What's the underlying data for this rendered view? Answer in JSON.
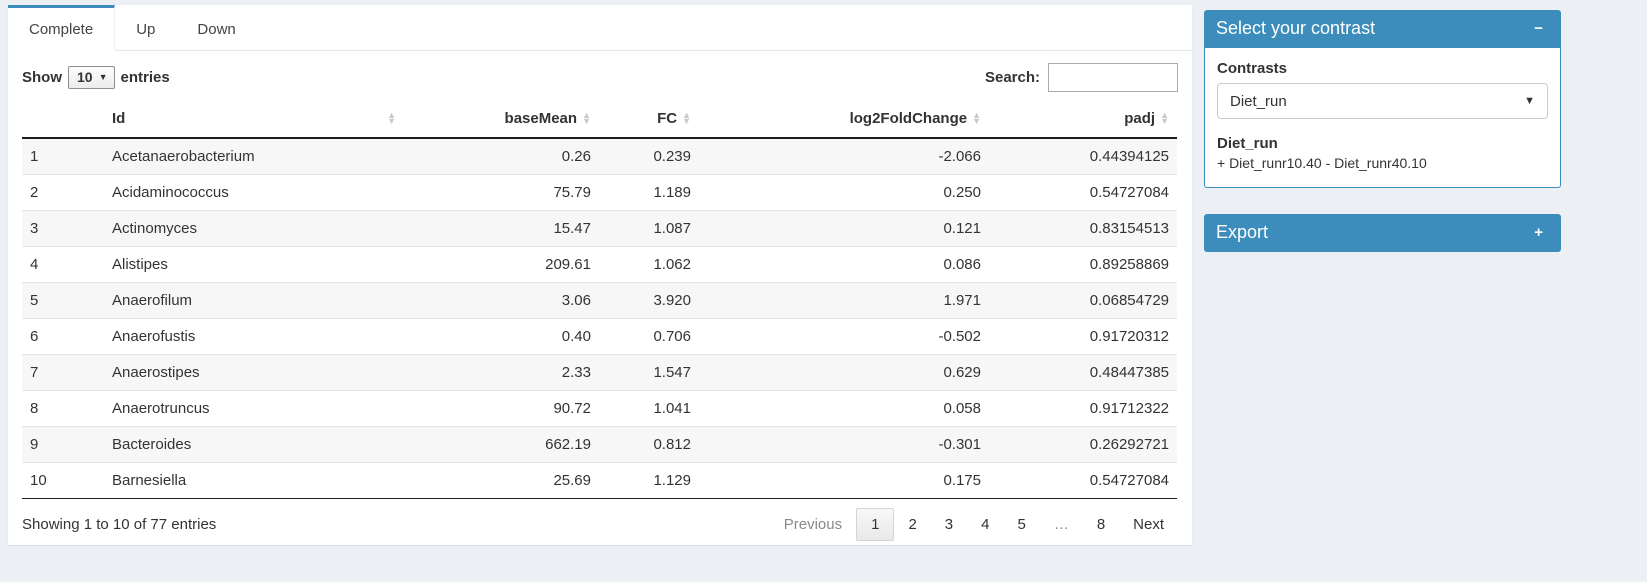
{
  "tabs": [
    {
      "label": "Complete",
      "active": true
    },
    {
      "label": "Up",
      "active": false
    },
    {
      "label": "Down",
      "active": false
    }
  ],
  "controls": {
    "show_label_before": "Show",
    "show_value": "10",
    "show_label_after": "entries",
    "search_label": "Search:",
    "search_value": ""
  },
  "table": {
    "columns": [
      {
        "label": "",
        "sortable": false,
        "align": "left",
        "key": "rownum"
      },
      {
        "label": "Id",
        "sortable": true,
        "align": "left",
        "key": "id"
      },
      {
        "label": "baseMean",
        "sortable": true,
        "align": "right",
        "key": "baseMean"
      },
      {
        "label": "FC",
        "sortable": true,
        "align": "right",
        "key": "fc"
      },
      {
        "label": "log2FoldChange",
        "sortable": true,
        "align": "right",
        "key": "log2FoldChange"
      },
      {
        "label": "padj",
        "sortable": true,
        "align": "right",
        "key": "padj"
      }
    ],
    "rows": [
      [
        "1",
        "Acetanaerobacterium",
        "0.26",
        "0.239",
        "-2.066",
        "0.44394125"
      ],
      [
        "2",
        "Acidaminococcus",
        "75.79",
        "1.189",
        "0.250",
        "0.54727084"
      ],
      [
        "3",
        "Actinomyces",
        "15.47",
        "1.087",
        "0.121",
        "0.83154513"
      ],
      [
        "4",
        "Alistipes",
        "209.61",
        "1.062",
        "0.086",
        "0.89258869"
      ],
      [
        "5",
        "Anaerofilum",
        "3.06",
        "3.920",
        "1.971",
        "0.06854729"
      ],
      [
        "6",
        "Anaerofustis",
        "0.40",
        "0.706",
        "-0.502",
        "0.91720312"
      ],
      [
        "7",
        "Anaerostipes",
        "2.33",
        "1.547",
        "0.629",
        "0.48447385"
      ],
      [
        "8",
        "Anaerotruncus",
        "90.72",
        "1.041",
        "0.058",
        "0.91712322"
      ],
      [
        "9",
        "Bacteroides",
        "662.19",
        "0.812",
        "-0.301",
        "0.26292721"
      ],
      [
        "10",
        "Barnesiella",
        "25.69",
        "1.129",
        "0.175",
        "0.54727084"
      ]
    ]
  },
  "footer": {
    "info": "Showing 1 to 10 of 77 entries",
    "pagination": [
      {
        "label": "Previous",
        "state": "disabled"
      },
      {
        "label": "1",
        "state": "active"
      },
      {
        "label": "2",
        "state": "normal"
      },
      {
        "label": "3",
        "state": "normal"
      },
      {
        "label": "4",
        "state": "normal"
      },
      {
        "label": "5",
        "state": "normal"
      },
      {
        "label": "…",
        "state": "ellipsis"
      },
      {
        "label": "8",
        "state": "normal"
      },
      {
        "label": "Next",
        "state": "normal"
      }
    ]
  },
  "sidebar": {
    "contrast_box": {
      "title": "Select your contrast",
      "collapse_icon": "−",
      "contrasts_label": "Contrasts",
      "selected_contrast": "Diet_run",
      "contrast_name": "Diet_run",
      "contrast_formula": "+ Diet_runr10.40 - Diet_runr40.10"
    },
    "export_box": {
      "title": "Export",
      "collapse_icon": "+"
    }
  },
  "colors": {
    "accent_blue": "#3c8dbc",
    "page_background": "#ecf0f5",
    "stripe": "#f7f7f7"
  }
}
